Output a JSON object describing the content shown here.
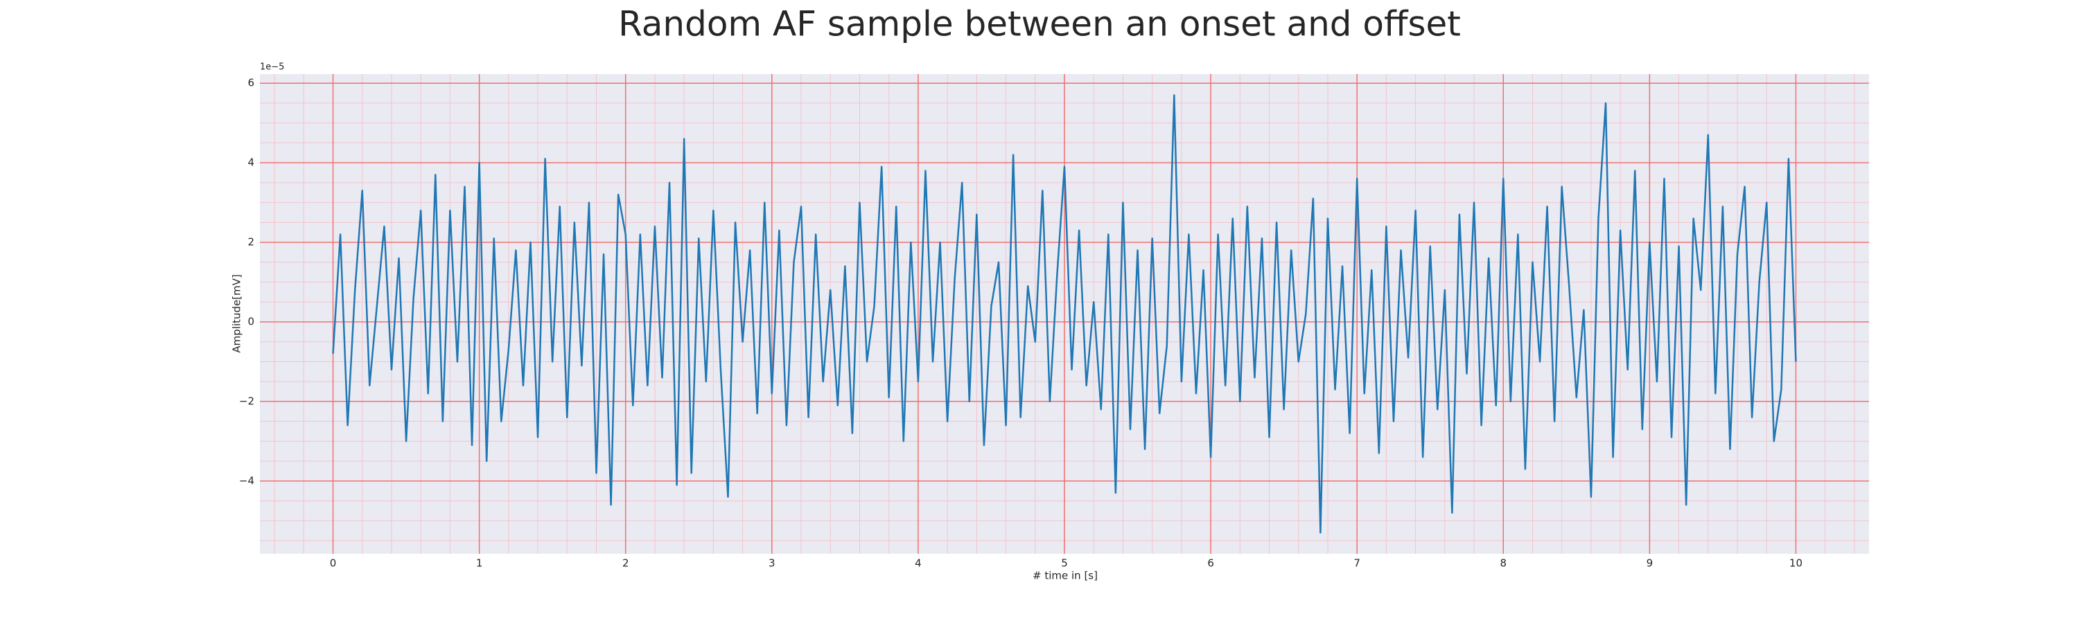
{
  "chart_data": {
    "type": "line",
    "title": "Random AF sample between an onset and offset",
    "xlabel": "# time in [s]",
    "ylabel": "Amplitude[mV]",
    "y_offset_label": "1e−5",
    "color": "#1f77b4",
    "background": "#eaeaf2",
    "grid": true,
    "grid_color": "#f07070",
    "minor_grid": true,
    "minor_grid_color": "#f4c4cc",
    "xlim": [
      -0.5,
      10.5
    ],
    "ylim": [
      -5.83,
      6.23
    ],
    "xticks": [
      0,
      1,
      2,
      3,
      4,
      5,
      6,
      7,
      8,
      9,
      10
    ],
    "yticks": [
      {
        "value": -4,
        "label": "−4"
      },
      {
        "value": -2,
        "label": "−2"
      },
      0,
      2,
      4,
      6
    ],
    "xminorticks": [
      -0.4,
      -0.2,
      0.2,
      0.4,
      0.6,
      0.8,
      1.2,
      1.4,
      1.6,
      1.8,
      2.2,
      2.4,
      2.6,
      2.8,
      3.2,
      3.4,
      3.6,
      3.8,
      4.2,
      4.4,
      4.6,
      4.8,
      5.2,
      5.4,
      5.6,
      5.8,
      6.2,
      6.4,
      6.6,
      6.8,
      7.2,
      7.4,
      7.6,
      7.8,
      8.2,
      8.4,
      8.6,
      8.8,
      9.2,
      9.4,
      9.6,
      9.8,
      10.2,
      10.4
    ],
    "yminorticks": [
      -5.5,
      -5,
      -4.5,
      -3.5,
      -3,
      -2.5,
      -1.5,
      -1,
      -0.5,
      0.5,
      1,
      1.5,
      2.5,
      3,
      3.5,
      4.5,
      5,
      5.5
    ],
    "x": [
      0,
      0.05,
      0.1,
      0.15,
      0.2,
      0.25,
      0.3,
      0.35,
      0.4,
      0.45,
      0.5,
      0.55,
      0.6,
      0.65,
      0.7,
      0.75,
      0.8,
      0.85,
      0.9,
      0.95,
      1,
      1.05,
      1.1,
      1.15,
      1.2,
      1.25,
      1.3,
      1.35,
      1.4,
      1.45,
      1.5,
      1.55,
      1.6,
      1.65,
      1.7,
      1.75,
      1.8,
      1.85,
      1.9,
      1.95,
      2,
      2.05,
      2.1,
      2.15,
      2.2,
      2.25,
      2.3,
      2.35,
      2.4,
      2.45,
      2.5,
      2.55,
      2.6,
      2.65,
      2.7,
      2.75,
      2.8,
      2.85,
      2.9,
      2.95,
      3,
      3.05,
      3.1,
      3.15,
      3.2,
      3.25,
      3.3,
      3.35,
      3.4,
      3.45,
      3.5,
      3.55,
      3.6,
      3.65,
      3.7,
      3.75,
      3.8,
      3.85,
      3.9,
      3.95,
      4,
      4.05,
      4.1,
      4.15,
      4.2,
      4.25,
      4.3,
      4.35,
      4.4,
      4.45,
      4.5,
      4.55,
      4.6,
      4.65,
      4.7,
      4.75,
      4.8,
      4.85,
      4.9,
      4.95,
      5,
      5.05,
      5.1,
      5.15,
      5.2,
      5.25,
      5.3,
      5.35,
      5.4,
      5.45,
      5.5,
      5.55,
      5.6,
      5.65,
      5.7,
      5.75,
      5.8,
      5.85,
      5.9,
      5.95,
      6,
      6.05,
      6.1,
      6.15,
      6.2,
      6.25,
      6.3,
      6.35,
      6.4,
      6.45,
      6.5,
      6.55,
      6.6,
      6.65,
      6.7,
      6.75,
      6.8,
      6.85,
      6.9,
      6.95,
      7,
      7.05,
      7.1,
      7.15,
      7.2,
      7.25,
      7.3,
      7.35,
      7.4,
      7.45,
      7.5,
      7.55,
      7.6,
      7.65,
      7.7,
      7.75,
      7.8,
      7.85,
      7.9,
      7.95,
      8,
      8.05,
      8.1,
      8.15,
      8.2,
      8.25,
      8.3,
      8.35,
      8.4,
      8.45,
      8.5,
      8.55,
      8.6,
      8.65,
      8.7,
      8.75,
      8.8,
      8.85,
      8.9,
      8.95,
      9,
      9.05,
      9.1,
      9.15,
      9.2,
      9.25,
      9.3,
      9.35,
      9.4,
      9.45,
      9.5,
      9.55,
      9.6,
      9.65,
      9.7,
      9.75,
      9.8,
      9.85,
      9.9,
      9.95,
      10
    ],
    "values": [
      -0.8,
      2.2,
      -2.6,
      0.8,
      3.3,
      -1.6,
      0.4,
      2.4,
      -1.2,
      1.6,
      -3.0,
      0.6,
      2.8,
      -1.8,
      3.7,
      -2.5,
      2.8,
      -1.0,
      3.4,
      -3.1,
      4.0,
      -3.5,
      2.1,
      -2.5,
      -0.7,
      1.8,
      -1.6,
      2.0,
      -2.9,
      4.1,
      -1.0,
      2.9,
      -2.4,
      2.5,
      -1.1,
      3.0,
      -3.8,
      1.7,
      -4.6,
      3.2,
      2.2,
      -2.1,
      2.2,
      -1.6,
      2.4,
      -1.4,
      3.5,
      -4.1,
      4.6,
      -3.8,
      2.1,
      -1.5,
      2.8,
      -1.2,
      -4.4,
      2.5,
      -0.5,
      1.8,
      -2.3,
      3.0,
      -1.8,
      2.3,
      -2.6,
      1.5,
      2.9,
      -2.4,
      2.2,
      -1.5,
      0.8,
      -2.1,
      1.4,
      -2.8,
      3.0,
      -1.0,
      0.4,
      3.9,
      -1.9,
      2.9,
      -3.0,
      2.0,
      -1.5,
      3.8,
      -1.0,
      2.0,
      -2.5,
      1.1,
      3.5,
      -2.0,
      2.7,
      -3.1,
      0.4,
      1.5,
      -2.6,
      4.2,
      -2.4,
      0.9,
      -0.5,
      3.3,
      -2.0,
      1.2,
      3.9,
      -1.2,
      2.3,
      -1.6,
      0.5,
      -2.2,
      2.2,
      -4.3,
      3.0,
      -2.7,
      1.8,
      -3.2,
      2.1,
      -2.3,
      -0.6,
      5.7,
      -1.5,
      2.2,
      -1.8,
      1.3,
      -3.4,
      2.2,
      -1.6,
      2.6,
      -2.0,
      2.9,
      -1.4,
      2.1,
      -2.9,
      2.5,
      -2.2,
      1.8,
      -1.0,
      0.2,
      3.1,
      -5.3,
      2.6,
      -1.7,
      1.4,
      -2.8,
      3.6,
      -1.8,
      1.3,
      -3.3,
      2.4,
      -2.5,
      1.8,
      -0.9,
      2.8,
      -3.4,
      1.9,
      -2.2,
      0.8,
      -4.8,
      2.7,
      -1.3,
      3.0,
      -2.6,
      1.6,
      -2.1,
      3.6,
      -2.0,
      2.2,
      -3.7,
      1.5,
      -1.0,
      2.9,
      -2.5,
      3.4,
      0.9,
      -1.9,
      0.3,
      -4.4,
      2.6,
      5.5,
      -3.4,
      2.3,
      -1.2,
      3.8,
      -2.7,
      2.0,
      -1.5,
      3.6,
      -2.9,
      1.9,
      -4.6,
      2.6,
      0.8,
      4.7,
      -1.8,
      2.9,
      -3.2,
      1.7,
      3.4,
      -2.4,
      1.0,
      3.0,
      -3.0,
      -1.7,
      4.1,
      -1.0
    ]
  }
}
